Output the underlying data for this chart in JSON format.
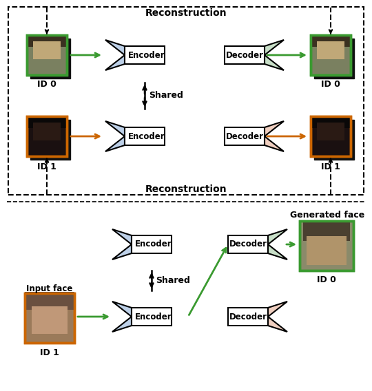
{
  "bg_color": "#ffffff",
  "green": "#3a9a30",
  "orange": "#cc6600",
  "black": "#000000",
  "enc_fill": "#bdd0e8",
  "dec0_fill": "#c8dfc8",
  "dec1_fill": "#f0cfc0",
  "green_border": "#3a9a30",
  "orange_border": "#cc6600",
  "top": {
    "recon_top": "Reconstruction",
    "recon_bot": "Reconstruction",
    "shared": "Shared",
    "id0_l": "ID 0",
    "id0_r": "ID 0",
    "id1_l": "ID 1",
    "id1_r": "ID 1"
  },
  "bottom": {
    "input_label": "Input face",
    "generated_label": "Generated face",
    "id0": "ID 0",
    "id1": "ID 1",
    "shared": "Shared"
  }
}
